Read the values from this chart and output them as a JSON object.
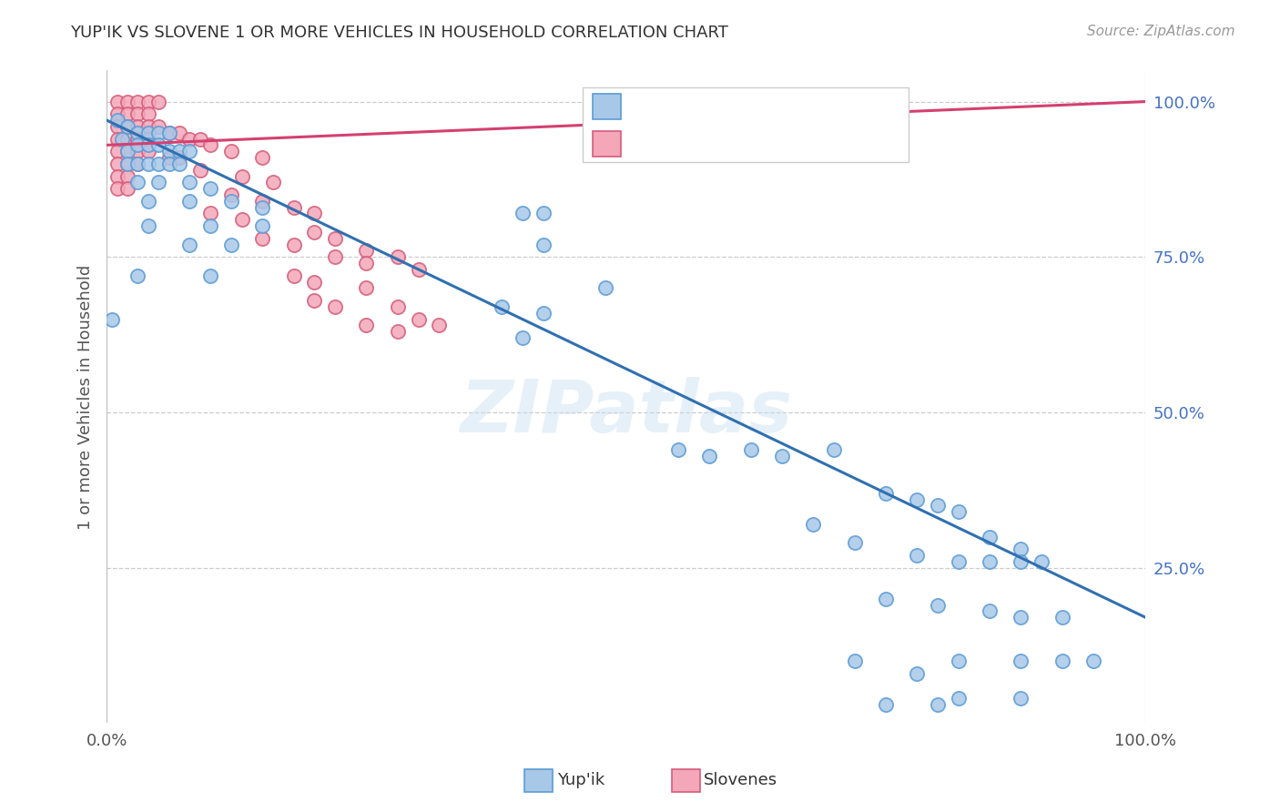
{
  "title": "YUP'IK VS SLOVENE 1 OR MORE VEHICLES IN HOUSEHOLD CORRELATION CHART",
  "source": "Source: ZipAtlas.com",
  "ylabel": "1 or more Vehicles in Household",
  "watermark": "ZIPatlas",
  "blue_color": "#a8c8e8",
  "blue_edge_color": "#5b9bd5",
  "pink_color": "#f4a7b9",
  "pink_edge_color": "#d45c7a",
  "blue_line_color": "#3070b0",
  "pink_line_color": "#d44070",
  "blue_line": [
    0,
    100,
    97,
    17
  ],
  "pink_line": [
    0,
    100,
    93,
    100
  ],
  "blue_points": [
    [
      1,
      97
    ],
    [
      2,
      96
    ],
    [
      1.5,
      94
    ],
    [
      3,
      95
    ],
    [
      4,
      95
    ],
    [
      5,
      95
    ],
    [
      6,
      95
    ],
    [
      2,
      92
    ],
    [
      3,
      93
    ],
    [
      4,
      93
    ],
    [
      5,
      93
    ],
    [
      6,
      92
    ],
    [
      7,
      92
    ],
    [
      8,
      92
    ],
    [
      2,
      90
    ],
    [
      3,
      90
    ],
    [
      4,
      90
    ],
    [
      5,
      90
    ],
    [
      6,
      90
    ],
    [
      7,
      90
    ],
    [
      3,
      87
    ],
    [
      5,
      87
    ],
    [
      8,
      87
    ],
    [
      10,
      86
    ],
    [
      4,
      84
    ],
    [
      8,
      84
    ],
    [
      12,
      84
    ],
    [
      15,
      83
    ],
    [
      4,
      80
    ],
    [
      10,
      80
    ],
    [
      15,
      80
    ],
    [
      8,
      77
    ],
    [
      12,
      77
    ],
    [
      3,
      72
    ],
    [
      10,
      72
    ],
    [
      0.5,
      65
    ],
    [
      40,
      82
    ],
    [
      42,
      82
    ],
    [
      42,
      77
    ],
    [
      48,
      70
    ],
    [
      38,
      67
    ],
    [
      42,
      66
    ],
    [
      40,
      62
    ],
    [
      55,
      44
    ],
    [
      58,
      43
    ],
    [
      62,
      44
    ],
    [
      65,
      43
    ],
    [
      70,
      44
    ],
    [
      75,
      37
    ],
    [
      78,
      36
    ],
    [
      80,
      35
    ],
    [
      82,
      34
    ],
    [
      85,
      30
    ],
    [
      88,
      28
    ],
    [
      68,
      32
    ],
    [
      72,
      29
    ],
    [
      78,
      27
    ],
    [
      82,
      26
    ],
    [
      85,
      26
    ],
    [
      88,
      26
    ],
    [
      90,
      26
    ],
    [
      75,
      20
    ],
    [
      80,
      19
    ],
    [
      85,
      18
    ],
    [
      88,
      17
    ],
    [
      92,
      17
    ],
    [
      72,
      10
    ],
    [
      78,
      8
    ],
    [
      82,
      10
    ],
    [
      88,
      10
    ],
    [
      92,
      10
    ],
    [
      95,
      10
    ],
    [
      75,
      3
    ],
    [
      80,
      3
    ],
    [
      82,
      4
    ],
    [
      88,
      4
    ]
  ],
  "pink_points": [
    [
      1,
      100
    ],
    [
      2,
      100
    ],
    [
      3,
      100
    ],
    [
      4,
      100
    ],
    [
      5,
      100
    ],
    [
      1,
      98
    ],
    [
      2,
      98
    ],
    [
      3,
      98
    ],
    [
      4,
      98
    ],
    [
      1,
      96
    ],
    [
      2,
      96
    ],
    [
      3,
      96
    ],
    [
      4,
      96
    ],
    [
      5,
      96
    ],
    [
      1,
      94
    ],
    [
      2,
      94
    ],
    [
      3,
      94
    ],
    [
      4,
      94
    ],
    [
      1,
      92
    ],
    [
      2,
      92
    ],
    [
      3,
      92
    ],
    [
      4,
      92
    ],
    [
      1,
      90
    ],
    [
      2,
      90
    ],
    [
      3,
      90
    ],
    [
      1,
      88
    ],
    [
      2,
      88
    ],
    [
      1,
      86
    ],
    [
      2,
      86
    ],
    [
      6,
      95
    ],
    [
      7,
      95
    ],
    [
      8,
      94
    ],
    [
      9,
      94
    ],
    [
      10,
      93
    ],
    [
      6,
      91
    ],
    [
      7,
      91
    ],
    [
      9,
      89
    ],
    [
      12,
      92
    ],
    [
      15,
      91
    ],
    [
      13,
      88
    ],
    [
      16,
      87
    ],
    [
      12,
      85
    ],
    [
      15,
      84
    ],
    [
      10,
      82
    ],
    [
      13,
      81
    ],
    [
      18,
      83
    ],
    [
      20,
      82
    ],
    [
      20,
      79
    ],
    [
      22,
      78
    ],
    [
      15,
      78
    ],
    [
      18,
      77
    ],
    [
      25,
      76
    ],
    [
      28,
      75
    ],
    [
      22,
      75
    ],
    [
      25,
      74
    ],
    [
      30,
      73
    ],
    [
      18,
      72
    ],
    [
      20,
      71
    ],
    [
      25,
      70
    ],
    [
      20,
      68
    ],
    [
      22,
      67
    ],
    [
      28,
      67
    ],
    [
      30,
      65
    ],
    [
      32,
      64
    ],
    [
      25,
      64
    ],
    [
      28,
      63
    ]
  ]
}
